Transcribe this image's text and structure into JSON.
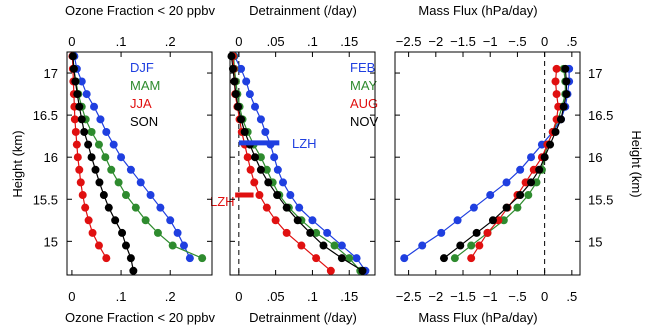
{
  "figure": {
    "y_left_label": "Height (km)",
    "y_right_label": "Height (km)"
  },
  "chart_data": [
    {
      "type": "line",
      "panel": "ozone",
      "title_top": "Ozone Fraction < 20 ppbv",
      "xlabel": "Ozone Fraction < 20 ppbv",
      "x_ticks": [
        0,
        0.1,
        0.2
      ],
      "xlim": [
        -0.01,
        0.285
      ],
      "ylim": [
        14.6,
        17.25
      ],
      "y_ticks": [
        15,
        15.5,
        16,
        16.5,
        17
      ],
      "heights": [
        17.2,
        17.05,
        16.9,
        16.75,
        16.6,
        16.45,
        16.3,
        16.15,
        16.0,
        15.85,
        15.7,
        15.55,
        15.4,
        15.25,
        15.1,
        14.95,
        14.8,
        14.65
      ],
      "series": [
        {
          "name": "DJF",
          "color": "#1f3fe0",
          "x": [
            0.005,
            0.01,
            0.02,
            0.03,
            0.045,
            0.058,
            0.07,
            0.085,
            0.1,
            0.12,
            0.14,
            0.16,
            0.18,
            0.2,
            0.215,
            0.228,
            0.24,
            null
          ]
        },
        {
          "name": "MAM",
          "color": "#2e8b2e",
          "x": [
            0.002,
            0.004,
            0.008,
            0.013,
            0.02,
            0.028,
            0.04,
            0.055,
            0.068,
            0.08,
            0.095,
            0.11,
            0.13,
            0.15,
            0.175,
            0.205,
            0.265,
            null
          ]
        },
        {
          "name": "JJA",
          "color": "#e01010",
          "x": [
            0.001,
            0.002,
            0.003,
            0.004,
            0.005,
            0.006,
            0.008,
            0.01,
            0.012,
            0.015,
            0.018,
            0.022,
            0.027,
            0.034,
            0.042,
            0.055,
            0.07,
            null
          ]
        },
        {
          "name": "SON",
          "color": "#000000",
          "x": [
            0.002,
            0.004,
            0.007,
            0.011,
            0.015,
            0.02,
            0.025,
            0.033,
            0.04,
            0.048,
            0.056,
            0.065,
            0.075,
            0.088,
            0.102,
            0.11,
            0.12,
            0.125
          ]
        }
      ]
    },
    {
      "type": "line",
      "panel": "detrainment",
      "title_top": "Detrainment (/day)",
      "xlabel": "Detrainment (/day)",
      "x_ticks_top": [
        0,
        0.05,
        0.1,
        0.15
      ],
      "x_ticks_bottom": [
        0,
        0.05,
        0.1,
        0.15
      ],
      "xlim": [
        -0.012,
        0.185
      ],
      "ylim": [
        14.6,
        17.25
      ],
      "y_ticks": [
        15,
        15.5,
        16,
        16.5,
        17
      ],
      "lzh_label": "LZH",
      "lzh": [
        {
          "series": "FEB",
          "height": 16.17,
          "x0": 0.0,
          "x1": 0.055
        },
        {
          "series": "AUG",
          "height": 15.55,
          "x0": -0.005,
          "x1": 0.02
        }
      ],
      "heights": [
        17.2,
        17.05,
        16.9,
        16.75,
        16.6,
        16.45,
        16.3,
        16.15,
        16.0,
        15.85,
        15.7,
        15.55,
        15.4,
        15.25,
        15.1,
        14.95,
        14.8,
        14.65
      ],
      "series": [
        {
          "name": "FEB",
          "color": "#1f3fe0",
          "x": [
            -0.006,
            0.003,
            0.01,
            0.015,
            0.022,
            0.03,
            0.036,
            0.043,
            0.048,
            0.053,
            0.06,
            0.07,
            0.082,
            0.1,
            0.12,
            0.14,
            0.16,
            0.172
          ]
        },
        {
          "name": "MAY",
          "color": "#2e8b2e",
          "x": [
            -0.007,
            -0.006,
            -0.004,
            -0.002,
            0.001,
            0.005,
            0.012,
            0.02,
            0.03,
            0.038,
            0.046,
            0.055,
            0.068,
            0.085,
            0.105,
            0.13,
            0.15,
            0.165
          ]
        },
        {
          "name": "AUG",
          "color": "#e01010",
          "x": [
            -0.008,
            -0.007,
            -0.006,
            -0.005,
            -0.002,
            0.001,
            0.004,
            0.008,
            0.012,
            0.016,
            0.021,
            0.028,
            0.038,
            0.05,
            0.065,
            0.085,
            0.105,
            0.125
          ]
        },
        {
          "name": "NOV",
          "color": "#000000",
          "x": [
            -0.01,
            -0.008,
            -0.006,
            -0.004,
            -0.001,
            0.003,
            0.008,
            0.015,
            0.022,
            0.03,
            0.04,
            0.052,
            0.065,
            0.08,
            0.097,
            0.115,
            0.14,
            0.168
          ]
        }
      ]
    },
    {
      "type": "line",
      "panel": "massflux",
      "title_top": "Mass Flux (hPa/day)",
      "xlabel": "Mass Flux (hPa/day)",
      "x_ticks": [
        -2.5,
        -2,
        -1.5,
        -1,
        -0.5,
        0,
        0.5
      ],
      "xlim": [
        -2.75,
        0.65
      ],
      "ylim": [
        14.6,
        17.25
      ],
      "y_ticks": [
        15,
        15.5,
        16,
        16.5,
        17
      ],
      "heights": [
        17.2,
        17.05,
        16.9,
        16.75,
        16.6,
        16.45,
        16.3,
        16.15,
        16.0,
        15.85,
        15.7,
        15.55,
        15.4,
        15.25,
        15.1,
        14.95,
        14.8,
        14.65
      ],
      "series": [
        {
          "name": "FEB",
          "color": "#1f3fe0",
          "x": [
            null,
            0.45,
            0.45,
            0.42,
            0.38,
            0.3,
            0.15,
            -0.05,
            -0.25,
            -0.45,
            -0.7,
            -1.0,
            -1.3,
            -1.6,
            -1.9,
            -2.25,
            -2.58,
            null
          ]
        },
        {
          "name": "MAY",
          "color": "#2e8b2e",
          "x": [
            null,
            0.35,
            0.38,
            0.38,
            0.32,
            0.25,
            0.15,
            0.05,
            0.0,
            -0.05,
            -0.15,
            -0.3,
            -0.5,
            -0.75,
            -1.05,
            -1.35,
            -1.65,
            null
          ]
        },
        {
          "name": "AUG",
          "color": "#e01010",
          "x": [
            null,
            0.22,
            0.2,
            0.22,
            0.25,
            0.22,
            0.15,
            0.05,
            -0.05,
            -0.2,
            -0.35,
            -0.5,
            -0.68,
            -0.85,
            -1.05,
            -1.2,
            -1.35,
            null
          ]
        },
        {
          "name": "NOV",
          "color": "#000000",
          "x": [
            null,
            0.38,
            0.4,
            0.4,
            0.35,
            0.3,
            0.2,
            0.1,
            0.0,
            -0.1,
            -0.25,
            -0.45,
            -0.7,
            -0.95,
            -1.25,
            -1.55,
            -1.85,
            null
          ]
        }
      ]
    }
  ]
}
